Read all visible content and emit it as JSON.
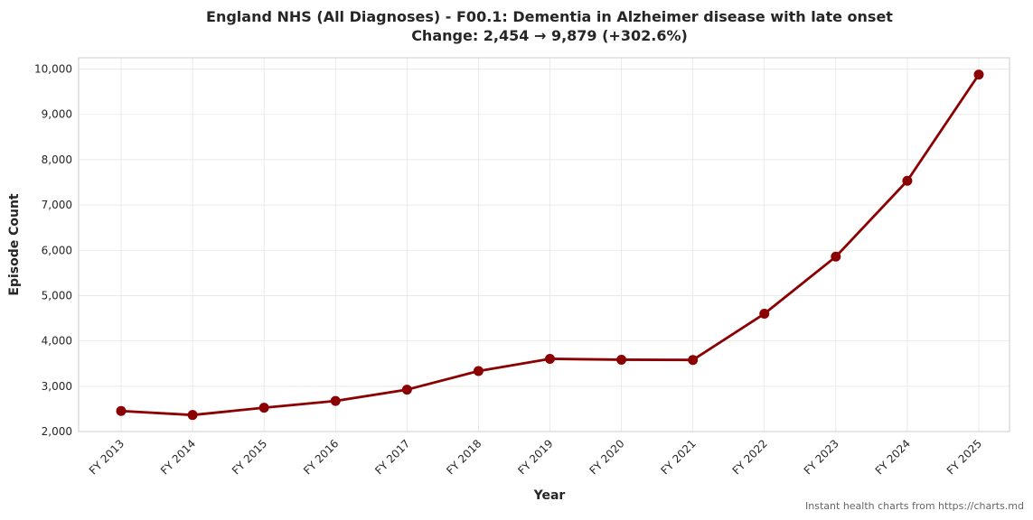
{
  "chart_data": {
    "type": "line",
    "title": "England NHS (All Diagnoses) - F00.1: Dementia in Alzheimer disease with late onset",
    "subtitle": "Change: 2,454 → 9,879 (+302.6%)",
    "xlabel": "Year",
    "ylabel": "Episode Count",
    "categories": [
      "FY 2013",
      "FY 2014",
      "FY 2015",
      "FY 2016",
      "FY 2017",
      "FY 2018",
      "FY 2019",
      "FY 2020",
      "FY 2021",
      "FY 2022",
      "FY 2023",
      "FY 2024",
      "FY 2025"
    ],
    "series": [
      {
        "values": [
          2454,
          2365,
          2525,
          2675,
          2925,
          3335,
          3605,
          3585,
          3580,
          4600,
          5860,
          7535,
          9879
        ],
        "color": "#8b0000"
      }
    ],
    "ylim": [
      2000,
      10250
    ],
    "yticks": [
      2000,
      3000,
      4000,
      5000,
      6000,
      7000,
      8000,
      9000,
      10000
    ],
    "ytick_labels": [
      "2,000",
      "3,000",
      "4,000",
      "5,000",
      "6,000",
      "7,000",
      "8,000",
      "9,000",
      "10,000"
    ],
    "grid": true
  },
  "footer": {
    "note": "Instant health charts from https://charts.md"
  }
}
